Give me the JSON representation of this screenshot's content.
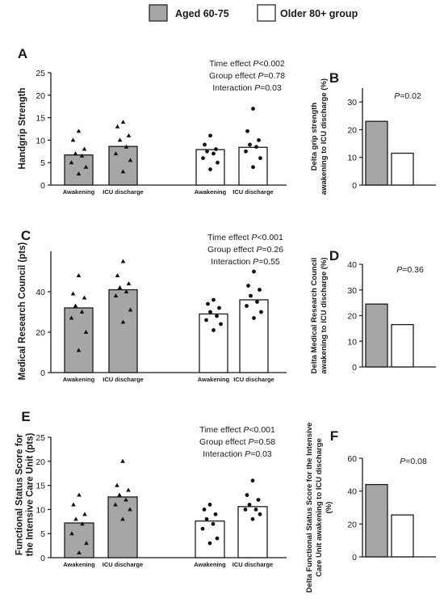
{
  "legend": {
    "items": [
      {
        "label": "Aged 60-75",
        "color": "#a6a6a6"
      },
      {
        "label": "Older 80+ group",
        "color": "#ffffff"
      }
    ]
  },
  "chart_data": [
    {
      "panel": "A",
      "type": "bar",
      "categories": [
        "Awakening",
        "ICU discharge",
        "Awakening",
        "ICU discharge"
      ],
      "groups": [
        "Aged 60-75",
        "Aged 60-75",
        "Older 80+ group",
        "Older 80+ group"
      ],
      "values": [
        6.7,
        8.6,
        7.9,
        8.4
      ],
      "points": [
        [
          12,
          10,
          8,
          7,
          6.5,
          5,
          4,
          2.5
        ],
        [
          14,
          13,
          11,
          10,
          8.5,
          7,
          5.5,
          3
        ],
        [
          11,
          9,
          8,
          7.5,
          7,
          6,
          5,
          3.5
        ],
        [
          17,
          12,
          10,
          9,
          8.5,
          7.5,
          6,
          4
        ]
      ],
      "markers": [
        "triangle",
        "triangle",
        "circle",
        "circle"
      ],
      "ylabel": "Handgrip Strength",
      "ylim": [
        0,
        25
      ],
      "yticks": [
        0,
        5,
        10,
        15,
        20,
        25
      ],
      "annotations": [
        {
          "pre": "Time effect ",
          "p": "P",
          "post": "<0.002"
        },
        {
          "pre": "Group effect ",
          "p": "P",
          "post": "=0.78"
        },
        {
          "pre": "Interaction ",
          "p": "P",
          "post": "=0.03"
        }
      ]
    },
    {
      "panel": "B",
      "type": "bar",
      "categories": [
        "Aged 60-75",
        "Older 80+ group"
      ],
      "values": [
        23,
        11.5
      ],
      "ylabel_lines": [
        "Delta grip strength",
        "awakening to ICU discharge (%)"
      ],
      "ylim": [
        0,
        35
      ],
      "yticks": [
        0,
        10,
        20,
        30
      ],
      "annotation": {
        "p": "P",
        "post": "=0.02"
      }
    },
    {
      "panel": "C",
      "type": "bar",
      "categories": [
        "Awakening",
        "ICU discharge",
        "Awakening",
        "ICU discharge"
      ],
      "groups": [
        "Aged 60-75",
        "Aged 60-75",
        "Older 80+ group",
        "Older 80+ group"
      ],
      "values": [
        32,
        41,
        29,
        36
      ],
      "points": [
        [
          48,
          39,
          37,
          33,
          30,
          27,
          20,
          11
        ],
        [
          55,
          48,
          44,
          42,
          40,
          38,
          31,
          25
        ],
        [
          36,
          34,
          32,
          30,
          28,
          26,
          24,
          21
        ],
        [
          50,
          43,
          41,
          38,
          35,
          33,
          30,
          27
        ]
      ],
      "markers": [
        "triangle",
        "triangle",
        "circle",
        "circle"
      ],
      "ylabel": "Medical Research Council (pts)",
      "ylim": [
        0,
        60
      ],
      "yticks": [
        0,
        20,
        40
      ],
      "annotations": [
        {
          "pre": "Time effect ",
          "p": "P",
          "post": "<0.001"
        },
        {
          "pre": "Group effect ",
          "p": "P",
          "post": "=0.26"
        },
        {
          "pre": "Interaction ",
          "p": "P",
          "post": "=0.55"
        }
      ]
    },
    {
      "panel": "D",
      "type": "bar",
      "categories": [
        "Aged 60-75",
        "Older 80+ group"
      ],
      "values": [
        24.5,
        16.5
      ],
      "ylabel_lines": [
        "Delta Medical Research Council",
        "awakening to ICU discharge (%)"
      ],
      "ylim": [
        0,
        40
      ],
      "yticks": [
        0,
        10,
        20,
        30,
        40
      ],
      "annotation": {
        "p": "P",
        "post": "=0.36"
      }
    },
    {
      "panel": "E",
      "type": "bar",
      "categories": [
        "Awakening",
        "ICU discharge",
        "Awakening",
        "ICU discharge"
      ],
      "groups": [
        "Aged 60-75",
        "Aged 60-75",
        "Older 80+ group",
        "Older 80+ group"
      ],
      "values": [
        7.2,
        12.6,
        7.6,
        10.6
      ],
      "points": [
        [
          13,
          11,
          9,
          8,
          7,
          5,
          3,
          1
        ],
        [
          20,
          15,
          14,
          13,
          12,
          11,
          10,
          8
        ],
        [
          11,
          10,
          9,
          8,
          7,
          6,
          4,
          3
        ],
        [
          16,
          13,
          12,
          11,
          10,
          10,
          9,
          8
        ]
      ],
      "markers": [
        "triangle",
        "triangle",
        "circle",
        "circle"
      ],
      "ylabel_lines": [
        "Functional Status Score for",
        "the Intensive Care Unit (pts)"
      ],
      "ylim": [
        0,
        25
      ],
      "yticks": [
        0,
        5,
        10,
        15,
        20,
        25
      ],
      "annotations": [
        {
          "pre": "Time effect ",
          "p": "P",
          "post": "<0.001"
        },
        {
          "pre": "Group effect ",
          "p": "P",
          "post": "=0.58"
        },
        {
          "pre": "Interaction ",
          "p": "P",
          "post": "=0.03"
        }
      ]
    },
    {
      "panel": "F",
      "type": "bar",
      "categories": [
        "Aged 60-75",
        "Older 80+ group"
      ],
      "values": [
        44,
        25.5
      ],
      "ylabel_lines": [
        "Delta Functional Status Score for the Intensive",
        "Care Unit awakening to ICU discharge",
        "(%)"
      ],
      "ylim": [
        0,
        60
      ],
      "yticks": [
        0,
        20,
        40,
        60
      ],
      "annotation": {
        "p": "P",
        "post": "=0.08"
      }
    }
  ]
}
